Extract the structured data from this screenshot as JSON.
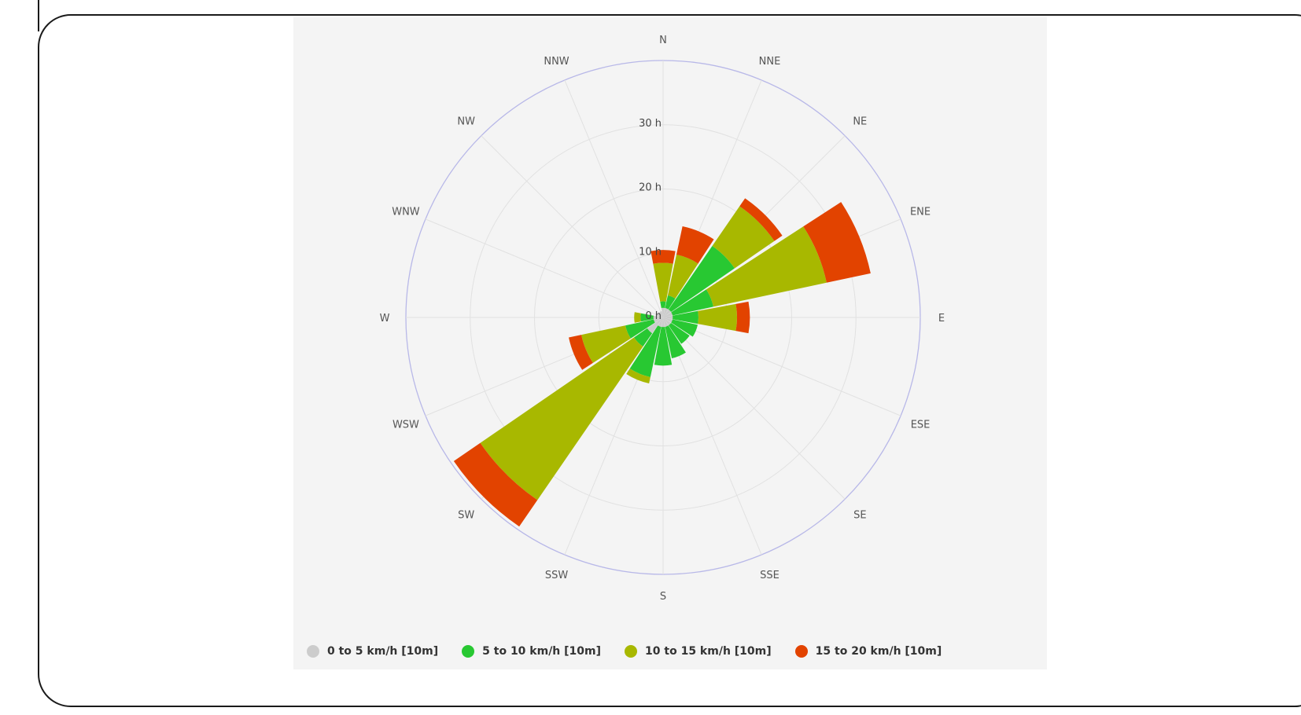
{
  "chart_data": {
    "type": "windrose",
    "directions": [
      "N",
      "NNE",
      "NE",
      "ENE",
      "E",
      "ESE",
      "SE",
      "SSE",
      "S",
      "SSW",
      "SW",
      "WSW",
      "W",
      "WNW",
      "NW",
      "NNW"
    ],
    "radial_ticks": [
      "0 h",
      "10 h",
      "20 h",
      "30 h"
    ],
    "radial_max": 40,
    "series": [
      {
        "name": "0 to 5 km/h [10m]",
        "color": "#cccccc",
        "values": [
          1.5,
          1.5,
          1.5,
          1.5,
          1.5,
          1.5,
          1.5,
          1.5,
          1.5,
          1.5,
          3,
          1.5,
          1.5,
          1,
          1,
          1
        ]
      },
      {
        "name": "5 to 10 km/h [10m]",
        "color": "#28c832",
        "values": [
          1,
          2,
          12,
          6.5,
          4,
          4,
          3.5,
          5,
          6,
          8,
          2.5,
          4.5,
          2,
          0,
          0,
          0
        ]
      },
      {
        "name": "10 to 15 km/h [10m]",
        "color": "#a8b800",
        "values": [
          6,
          6.5,
          7.5,
          18,
          6,
          0,
          0,
          0,
          0,
          1,
          29,
          7,
          1,
          0,
          0,
          0
        ]
      },
      {
        "name": "15 to 20 km/h [10m]",
        "color": "#e24300",
        "values": [
          2,
          4.5,
          1.5,
          7,
          2,
          0,
          0,
          0,
          0,
          0,
          5,
          2,
          0,
          0,
          0,
          0
        ]
      }
    ],
    "legend_position": "bottom"
  }
}
